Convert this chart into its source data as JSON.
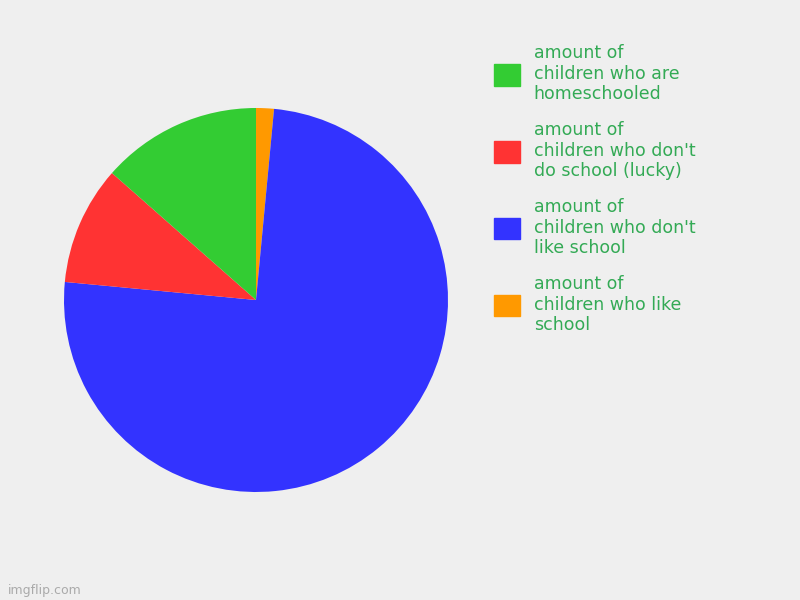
{
  "labels": [
    "amount of children who like school",
    "amount of children who don't like school",
    "amount of children who don't do school (lucky)",
    "amount of children who are homeschooled"
  ],
  "legend_labels": [
    "amount of\nchildren who like\nschool",
    "amount of\nchildren who don't\nlike school",
    "amount of\nchildren who don't\ndo school (lucky)",
    "amount of\nchildren who are\nhomeschooled"
  ],
  "values": [
    1.5,
    75,
    10,
    13.5
  ],
  "colors": [
    "#ff9900",
    "#3333ff",
    "#ff3333",
    "#33cc33"
  ],
  "background_color": "#efefef",
  "legend_text_color": "#33aa55",
  "legend_fontsize": 12.5,
  "startangle": 90,
  "figsize": [
    8.0,
    6.0
  ],
  "dpi": 100
}
